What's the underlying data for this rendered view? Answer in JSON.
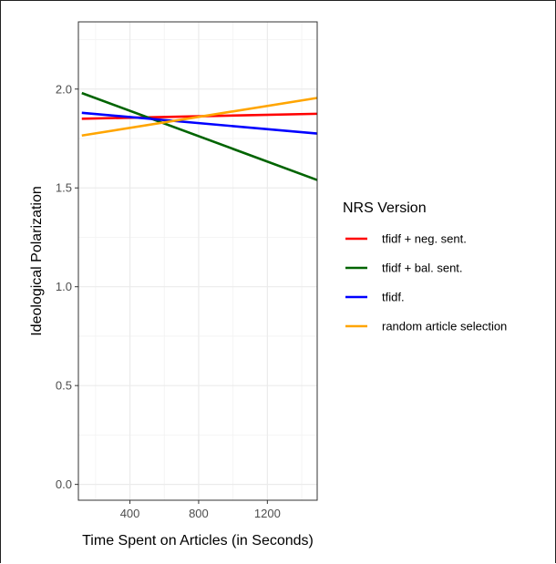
{
  "chart_data": {
    "type": "line",
    "xlabel": "Time Spent on Articles (in Seconds)",
    "ylabel": "Ideological Polarization",
    "xlim": [
      100,
      1490
    ],
    "ylim": [
      -0.08,
      2.34
    ],
    "x_ticks": [
      400,
      800,
      1200
    ],
    "x_tick_labels": [
      "400",
      "800",
      "1200"
    ],
    "y_ticks": [
      0.0,
      0.5,
      1.0,
      1.5,
      2.0
    ],
    "y_tick_labels": [
      "0.0",
      "0.5",
      "1.0",
      "1.5",
      "2.0"
    ],
    "grid": true,
    "legend": {
      "title": "NRS Version",
      "position": "right"
    },
    "series": [
      {
        "name": "tfidf + neg. sent.",
        "color": "#ff0000",
        "x": [
          120,
          1490
        ],
        "y": [
          1.85,
          1.875
        ]
      },
      {
        "name": "tfidf + bal. sent.",
        "color": "#006400",
        "x": [
          120,
          1490
        ],
        "y": [
          1.98,
          1.54
        ]
      },
      {
        "name": "tfidf.",
        "color": "#0000ff",
        "x": [
          120,
          1490
        ],
        "y": [
          1.88,
          1.775
        ]
      },
      {
        "name": "random article selection",
        "color": "#ffa500",
        "x": [
          120,
          1490
        ],
        "y": [
          1.765,
          1.955
        ]
      }
    ]
  }
}
